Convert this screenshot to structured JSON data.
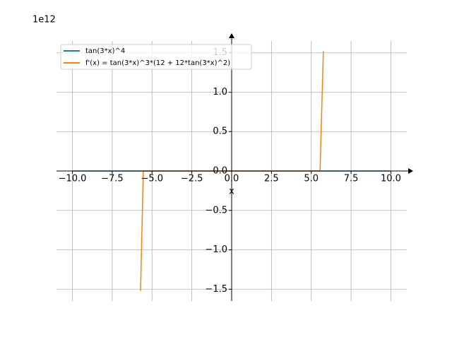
{
  "chart_data": {
    "type": "line",
    "y_offset_label": "1e12",
    "xlabel": "x",
    "xlim": [
      -11,
      11
    ],
    "ylim": [
      -1.65,
      1.65
    ],
    "xticks": [
      {
        "value": -10,
        "label": "−10.0"
      },
      {
        "value": -7.5,
        "label": "−7.5"
      },
      {
        "value": -5,
        "label": "−5.0"
      },
      {
        "value": -2.5,
        "label": "−2.5"
      },
      {
        "value": 0,
        "label": "0.0"
      },
      {
        "value": 2.5,
        "label": "2.5"
      },
      {
        "value": 5,
        "label": "5.0"
      },
      {
        "value": 7.5,
        "label": "7.5"
      },
      {
        "value": 10,
        "label": "10.0"
      }
    ],
    "yticks": [
      {
        "value": -1.5,
        "label": "−1.5"
      },
      {
        "value": -1,
        "label": "−1.0"
      },
      {
        "value": -0.5,
        "label": "−0.5"
      },
      {
        "value": 0,
        "label": "0.0"
      },
      {
        "value": 0.5,
        "label": "0.5"
      },
      {
        "value": 1,
        "label": "1.0"
      },
      {
        "value": 1.5,
        "label": "1.5"
      }
    ],
    "grid": true,
    "legend": "upper left",
    "series": [
      {
        "name": "tan(3*x)^4",
        "color": "#1f77b4",
        "x": [
          -10,
          10
        ],
        "values": [
          0,
          0
        ]
      },
      {
        "name": "f'(x) = tan(3*x)^3*(12 + 12*tan(3*x)^2)",
        "color": "#ff7f0e",
        "x": [
          -10,
          -5.78,
          -5.72,
          -5.55,
          5.55,
          5.76,
          5.82,
          10
        ],
        "values": [
          0,
          null,
          -1.52,
          0,
          0,
          1.52,
          null,
          0
        ]
      }
    ]
  }
}
